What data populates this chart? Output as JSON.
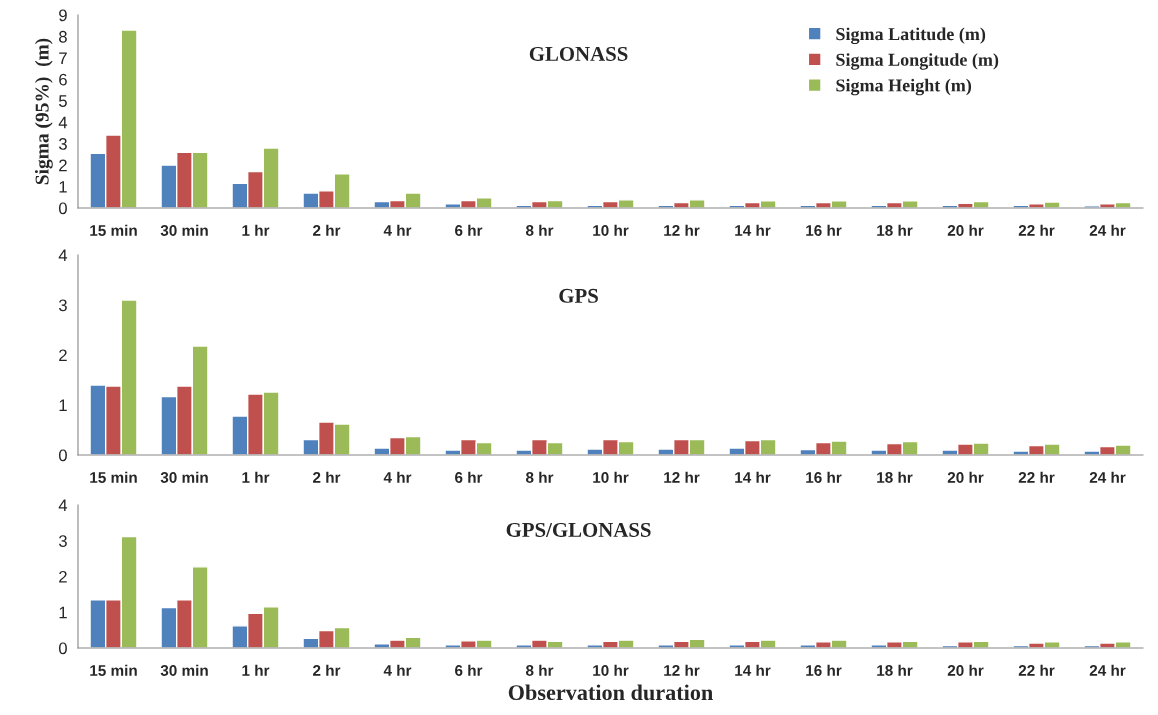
{
  "chart_data": [
    {
      "type": "bar",
      "title": "GLONASS",
      "ylabel": "Sigma (95%)  (m)",
      "categories": [
        "15 min",
        "30 min",
        "1 hr",
        "2 hr",
        "4 hr",
        "6 hr",
        "8 hr",
        "10 hr",
        "12 hr",
        "14 hr",
        "16 hr",
        "18 hr",
        "20 hr",
        "22 hr",
        "24 hr"
      ],
      "ylim": [
        0,
        9
      ],
      "yticks": [
        0,
        1,
        2,
        3,
        4,
        5,
        6,
        7,
        8,
        9
      ],
      "legend": "top right",
      "series": [
        {
          "name": "Sigma Latitude (m)",
          "color": "#4f81bd",
          "values": [
            2.55,
            2.0,
            1.15,
            0.7,
            0.3,
            0.2,
            0.12,
            0.12,
            0.12,
            0.12,
            0.12,
            0.12,
            0.12,
            0.12,
            0.1
          ]
        },
        {
          "name": "Sigma Longitude (m)",
          "color": "#c0504d",
          "values": [
            3.4,
            2.6,
            1.7,
            0.8,
            0.35,
            0.35,
            0.3,
            0.3,
            0.25,
            0.25,
            0.25,
            0.25,
            0.22,
            0.2,
            0.2
          ]
        },
        {
          "name": "Sigma Height (m)",
          "color": "#9bbb59",
          "values": [
            8.3,
            2.6,
            2.8,
            1.6,
            0.7,
            0.48,
            0.35,
            0.38,
            0.38,
            0.33,
            0.33,
            0.33,
            0.3,
            0.28,
            0.25
          ]
        }
      ]
    },
    {
      "type": "bar",
      "title": "GPS",
      "categories": [
        "15 min",
        "30 min",
        "1 hr",
        "2 hr",
        "4 hr",
        "6 hr",
        "8 hr",
        "10 hr",
        "12 hr",
        "14 hr",
        "16 hr",
        "18 hr",
        "20 hr",
        "22 hr",
        "24 hr"
      ],
      "ylim": [
        0,
        4
      ],
      "yticks": [
        0,
        1,
        2,
        3,
        4
      ],
      "series": [
        {
          "color": "#4f81bd",
          "values": [
            1.4,
            1.17,
            0.78,
            0.31,
            0.14,
            0.1,
            0.1,
            0.12,
            0.12,
            0.14,
            0.11,
            0.1,
            0.1,
            0.08,
            0.08
          ]
        },
        {
          "color": "#c0504d",
          "values": [
            1.38,
            1.38,
            1.22,
            0.66,
            0.35,
            0.31,
            0.31,
            0.31,
            0.31,
            0.29,
            0.25,
            0.23,
            0.22,
            0.19,
            0.17
          ]
        },
        {
          "color": "#9bbb59",
          "values": [
            3.1,
            2.18,
            1.26,
            0.62,
            0.37,
            0.25,
            0.25,
            0.27,
            0.31,
            0.31,
            0.28,
            0.27,
            0.24,
            0.22,
            0.2
          ]
        }
      ]
    },
    {
      "type": "bar",
      "title": "GPS/GLONASS",
      "xlabel": "Observation duration",
      "categories": [
        "15 min",
        "30 min",
        "1 hr",
        "2 hr",
        "4 hr",
        "6 hr",
        "8 hr",
        "10 hr",
        "12 hr",
        "14 hr",
        "16 hr",
        "18 hr",
        "20 hr",
        "22 hr",
        "24 hr"
      ],
      "ylim": [
        0,
        4
      ],
      "yticks": [
        0,
        1,
        2,
        3,
        4
      ],
      "series": [
        {
          "color": "#4f81bd",
          "values": [
            1.35,
            1.13,
            0.62,
            0.27,
            0.12,
            0.09,
            0.09,
            0.09,
            0.09,
            0.09,
            0.09,
            0.09,
            0.07,
            0.07,
            0.07
          ]
        },
        {
          "color": "#c0504d",
          "values": [
            1.35,
            1.35,
            0.97,
            0.49,
            0.22,
            0.2,
            0.22,
            0.19,
            0.19,
            0.19,
            0.17,
            0.17,
            0.17,
            0.14,
            0.14
          ]
        },
        {
          "color": "#9bbb59",
          "values": [
            3.12,
            2.27,
            1.15,
            0.57,
            0.3,
            0.22,
            0.19,
            0.22,
            0.24,
            0.22,
            0.22,
            0.19,
            0.19,
            0.17,
            0.17
          ]
        }
      ]
    }
  ]
}
